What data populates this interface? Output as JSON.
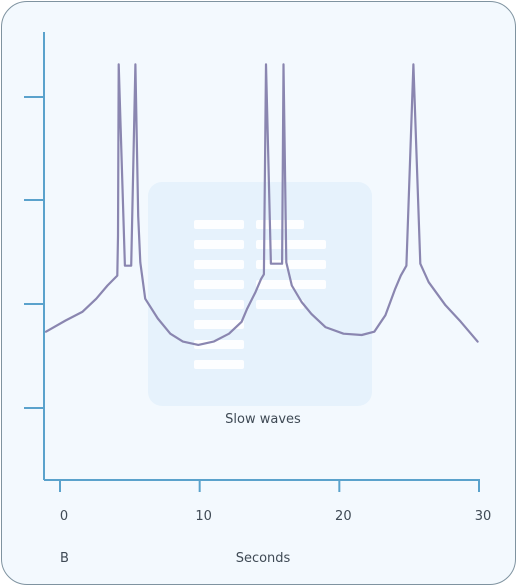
{
  "colors": {
    "axis": "#5aa2cc",
    "trace": "#8a86b0",
    "card_background": "#f3f9fe",
    "overlay_panel": "#e3f1fc",
    "overlay_lines": "#ffffff"
  },
  "chart_data": {
    "type": "line",
    "title": "",
    "xlabel": "Seconds",
    "ylabel": "",
    "panel_label": "B",
    "annotation": "Slow waves",
    "xlim": [
      -1,
      30
    ],
    "x_ticks": [
      0,
      10,
      20,
      30
    ],
    "x_tick_labels": [
      "0",
      "10",
      "20",
      "30"
    ],
    "y_tick_count": 4,
    "grid": false,
    "series": [
      {
        "points": [
          [
            -1.0,
            -0.45
          ],
          [
            0.4,
            -0.28
          ],
          [
            1.6,
            -0.15
          ],
          [
            2.6,
            0.05
          ],
          [
            3.4,
            0.25
          ],
          [
            4.1,
            0.4
          ],
          [
            4.15,
            1.0
          ],
          [
            4.2,
            3.6
          ],
          [
            4.65,
            0.55
          ],
          [
            5.1,
            0.55
          ],
          [
            5.4,
            3.6
          ],
          [
            5.6,
            1.3
          ],
          [
            5.75,
            0.6
          ],
          [
            6.1,
            0.05
          ],
          [
            7.0,
            -0.25
          ],
          [
            7.9,
            -0.48
          ],
          [
            8.8,
            -0.6
          ],
          [
            9.9,
            -0.65
          ],
          [
            11.0,
            -0.6
          ],
          [
            12.1,
            -0.48
          ],
          [
            13.0,
            -0.3
          ],
          [
            13.4,
            -0.1
          ],
          [
            14.0,
            0.15
          ],
          [
            14.4,
            0.35
          ],
          [
            14.6,
            0.42
          ],
          [
            14.75,
            3.6
          ],
          [
            15.1,
            0.58
          ],
          [
            15.9,
            0.58
          ],
          [
            16.0,
            3.6
          ],
          [
            16.2,
            0.6
          ],
          [
            16.6,
            0.25
          ],
          [
            17.3,
            0.0
          ],
          [
            18.0,
            -0.18
          ],
          [
            19.0,
            -0.38
          ],
          [
            20.3,
            -0.48
          ],
          [
            21.6,
            -0.5
          ],
          [
            22.5,
            -0.45
          ],
          [
            23.3,
            -0.2
          ],
          [
            24.0,
            0.2
          ],
          [
            24.4,
            0.4
          ],
          [
            24.8,
            0.55
          ],
          [
            25.3,
            3.6
          ],
          [
            25.8,
            0.58
          ],
          [
            26.4,
            0.3
          ],
          [
            27.6,
            -0.05
          ],
          [
            28.7,
            -0.3
          ],
          [
            29.9,
            -0.6
          ]
        ]
      }
    ]
  }
}
